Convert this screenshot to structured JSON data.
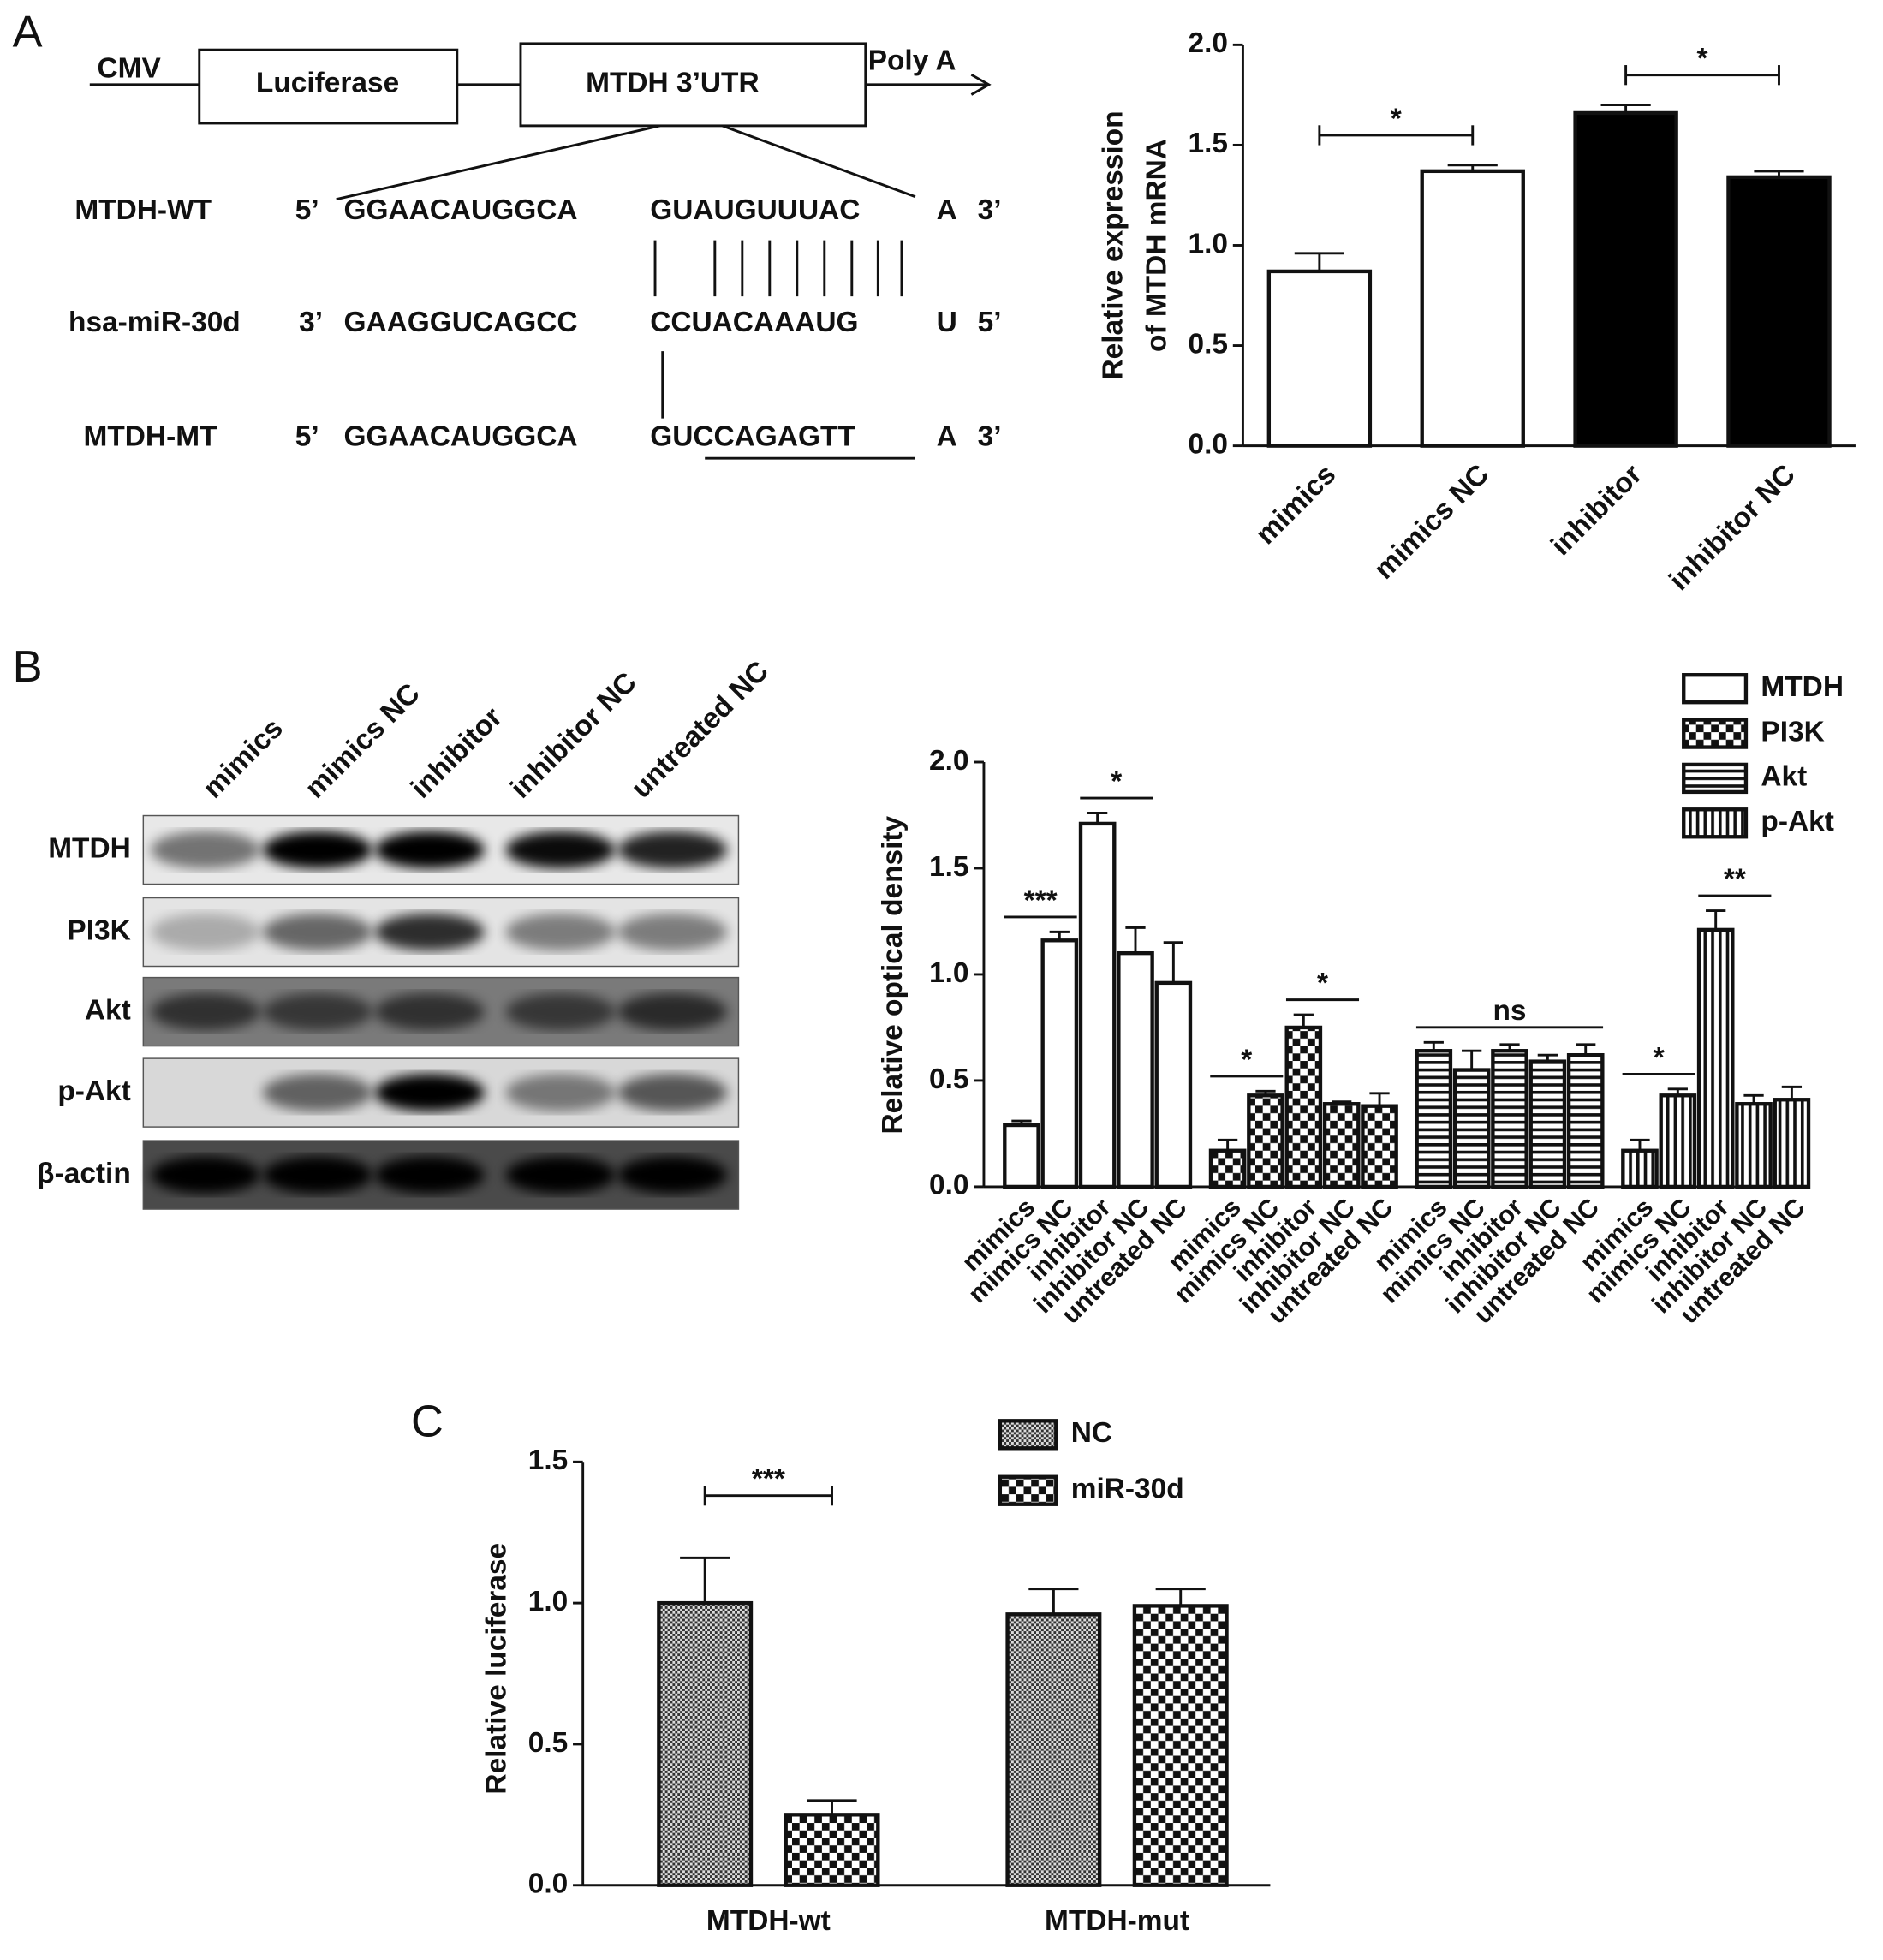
{
  "panel_labels": [
    "A",
    "B",
    "C"
  ],
  "construct": {
    "promoter": "CMV",
    "reporter": "Luciferase",
    "utr": "MTDH 3’UTR",
    "polya": "Poly A"
  },
  "sequences": [
    {
      "name": "MTDH-WT",
      "start": "5’",
      "part1": "GGAACAUGGCA",
      "part2": "GUAUGUUUAC",
      "last": "A",
      "end": "3’"
    },
    {
      "name": "hsa-miR-30d",
      "start": "3’",
      "part1": "GAAGGUCAGCC",
      "part2": "CCUACAAAUG",
      "last": "U",
      "end": "5’"
    },
    {
      "name": "MTDH-MT",
      "start": "5’",
      "part1": "GGAACAUGGCA",
      "part2": "GUCCAGAGTT",
      "last": "A",
      "end": "3’"
    }
  ],
  "blot": {
    "lanes": [
      "mimics",
      "mimics NC",
      "inhibitor",
      "inhibitor NC",
      "untreated NC"
    ],
    "proteins": [
      "MTDH",
      "PI3K",
      "Akt",
      "p-Akt",
      "β-actin"
    ]
  },
  "chart_data": [
    {
      "type": "bar",
      "ylabel": [
        "Relative expression",
        "of MTDH mRNA"
      ],
      "categories": [
        "mimics",
        "mimics NC",
        "inhibitor",
        "inhibitor NC"
      ],
      "values": [
        0.87,
        1.37,
        1.66,
        1.34
      ],
      "errors": [
        0.09,
        0.03,
        0.04,
        0.03
      ],
      "colors": [
        "#ffffff",
        "#ffffff",
        "#000000",
        "#000000"
      ],
      "ylim": [
        0,
        2
      ],
      "yticks": [
        {
          "value": 0,
          "label": "0.0"
        },
        {
          "value": 0.5,
          "label": "0.5"
        },
        {
          "value": 1,
          "label": "1.0"
        },
        {
          "value": 1.5,
          "label": "1.5"
        },
        {
          "value": 2,
          "label": "2.0"
        }
      ],
      "annotations": [
        {
          "text": "*",
          "between": [
            0,
            1
          ]
        },
        {
          "text": "*",
          "between": [
            2,
            3
          ]
        }
      ]
    },
    {
      "type": "bar",
      "group_by": "series",
      "ylabel": "Relative optical density",
      "categories": [
        "mimics",
        "mimics NC",
        "inhibitor",
        "inhibitor NC",
        "untreated NC"
      ],
      "series": [
        {
          "name": "MTDH",
          "color": "#000000",
          "pattern": "none",
          "values": [
            0.29,
            1.16,
            1.71,
            1.1,
            0.96
          ],
          "errors": [
            0.02,
            0.04,
            0.05,
            0.12,
            0.19
          ]
        },
        {
          "name": "PI3K",
          "color": "#000000",
          "pattern": "checker",
          "values": [
            0.17,
            0.43,
            0.75,
            0.39,
            0.38
          ],
          "errors": [
            0.05,
            0.02,
            0.06,
            0.01,
            0.06
          ]
        },
        {
          "name": "Akt",
          "color": "#000000",
          "pattern": "hstripe",
          "values": [
            0.64,
            0.55,
            0.64,
            0.59,
            0.62
          ],
          "errors": [
            0.04,
            0.09,
            0.03,
            0.03,
            0.05
          ]
        },
        {
          "name": "p-Akt",
          "color": "#000000",
          "pattern": "vstripe",
          "values": [
            0.17,
            0.43,
            1.21,
            0.39,
            0.41
          ],
          "errors": [
            0.05,
            0.03,
            0.09,
            0.04,
            0.06
          ]
        }
      ],
      "ylim": [
        0,
        2
      ],
      "yticks": [
        {
          "value": 0,
          "label": "0.0"
        },
        {
          "value": 0.5,
          "label": "0.5"
        },
        {
          "value": 1,
          "label": "1.0"
        },
        {
          "value": 1.5,
          "label": "1.5"
        },
        {
          "value": 2,
          "label": "2.0"
        }
      ],
      "legend": "top-right",
      "annotations": [
        {
          "text": "***",
          "group": 0,
          "between": [
            0,
            1
          ]
        },
        {
          "text": "*",
          "group": 0,
          "between": [
            2,
            3
          ]
        },
        {
          "text": "*",
          "group": 1,
          "between": [
            0,
            1
          ]
        },
        {
          "text": "*",
          "group": 1,
          "between": [
            2,
            3
          ]
        },
        {
          "text": "ns",
          "group": 2,
          "between": [
            0,
            4
          ]
        },
        {
          "text": "*",
          "group": 3,
          "between": [
            0,
            1
          ]
        },
        {
          "text": "**",
          "group": 3,
          "between": [
            2,
            3
          ]
        }
      ]
    },
    {
      "type": "bar",
      "group_by": "category",
      "ylabel": "Relative luciferase",
      "categories": [
        "MTDH-wt",
        "MTDH-mut"
      ],
      "series": [
        {
          "name": "NC",
          "color": "#000000",
          "pattern": "fine-checker",
          "values": [
            1.0,
            0.96
          ],
          "errors": [
            0.16,
            0.09
          ]
        },
        {
          "name": "miR-30d",
          "color": "#000000",
          "pattern": "checker",
          "values": [
            0.25,
            0.99
          ],
          "errors": [
            0.05,
            0.06
          ]
        }
      ],
      "ylim": [
        0,
        1.5
      ],
      "yticks": [
        {
          "value": 0,
          "label": "0.0"
        },
        {
          "value": 0.5,
          "label": "0.5"
        },
        {
          "value": 1,
          "label": "1.0"
        },
        {
          "value": 1.5,
          "label": "1.5"
        }
      ],
      "legend": "top-right",
      "annotations": [
        {
          "text": "***",
          "group": 0,
          "between": [
            0,
            1
          ]
        }
      ]
    }
  ]
}
